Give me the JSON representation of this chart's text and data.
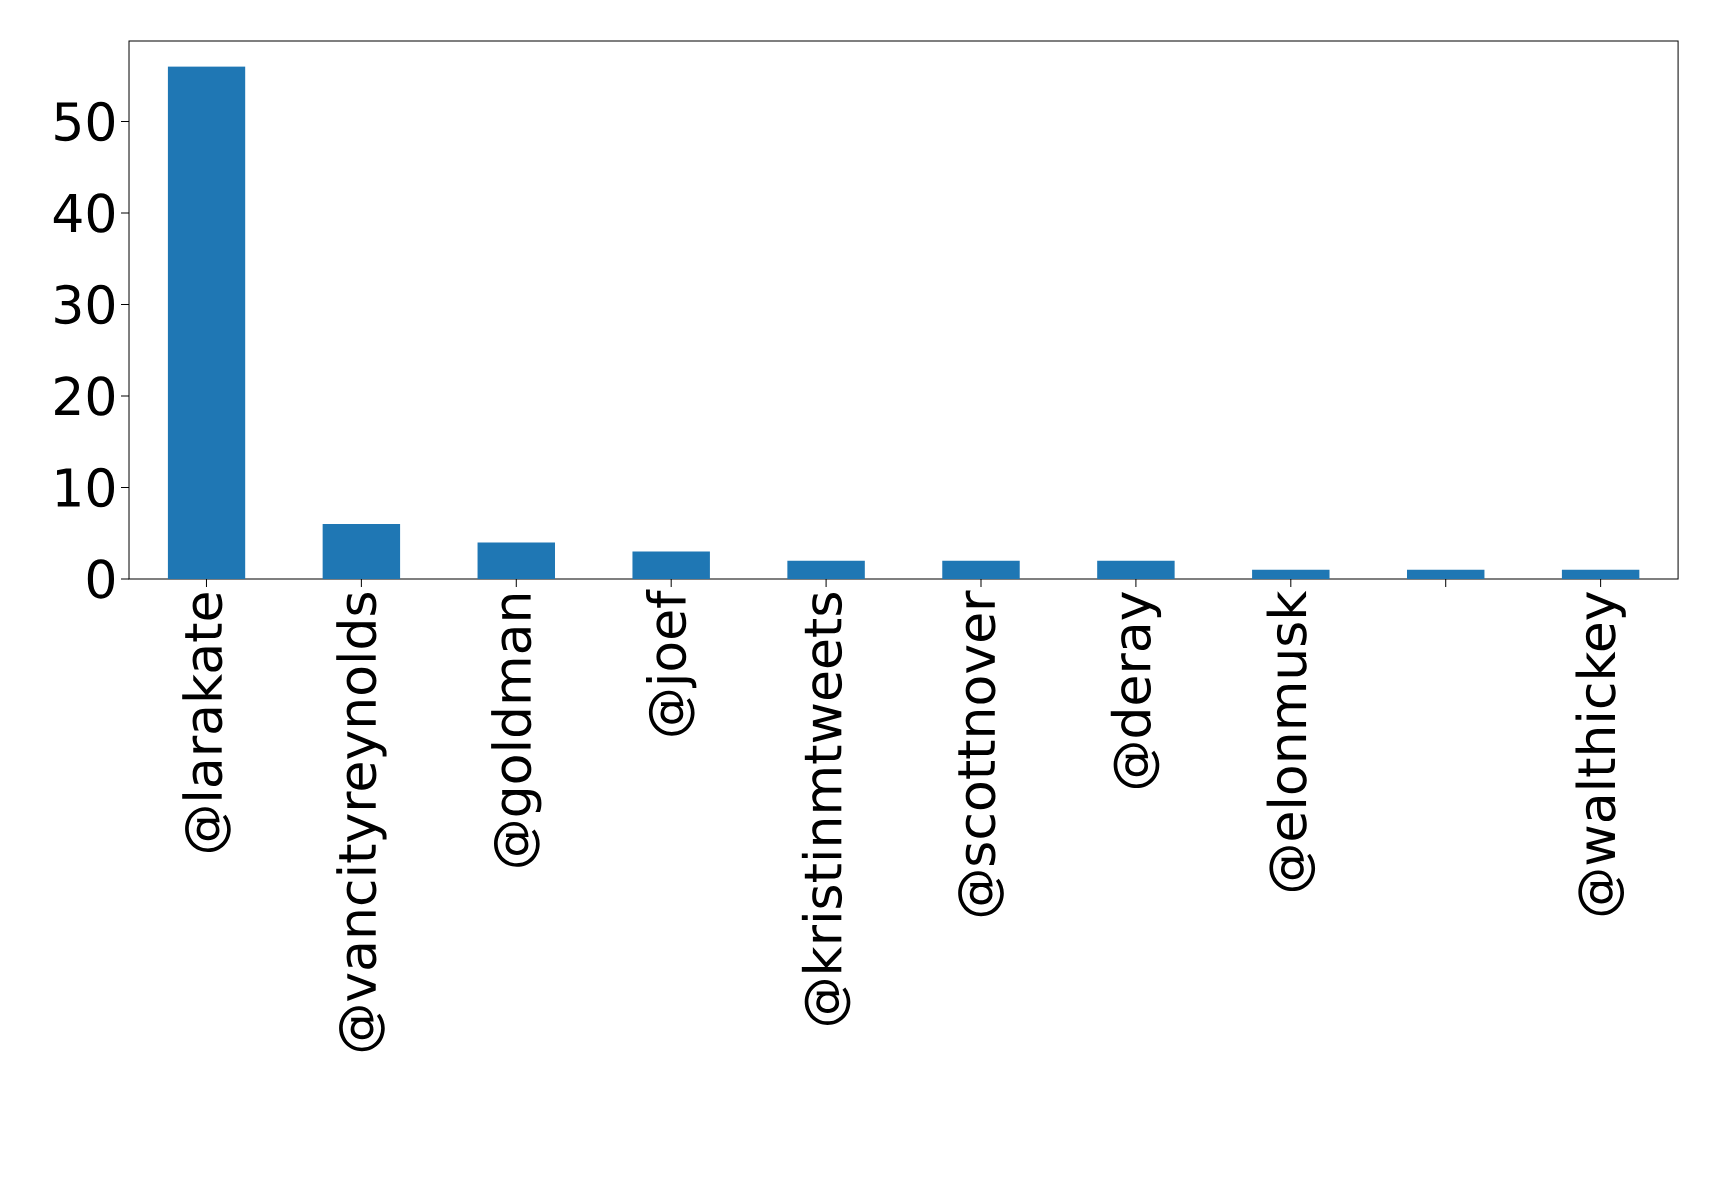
{
  "chart_data": {
    "type": "bar",
    "categories": [
      "@larakate",
      "@vancityreynolds",
      "@goldman",
      "@joef",
      "@kristinmtweets",
      "@scottnover",
      "@deray",
      "@elonmusk",
      null,
      "@walthickey"
    ],
    "values": [
      56,
      6,
      4,
      3,
      2,
      2,
      2,
      1,
      1,
      1
    ],
    "color": "#1f77b4",
    "ylim": [
      0,
      58.8
    ],
    "yticks": [
      0,
      10,
      20,
      30,
      40,
      50
    ]
  }
}
